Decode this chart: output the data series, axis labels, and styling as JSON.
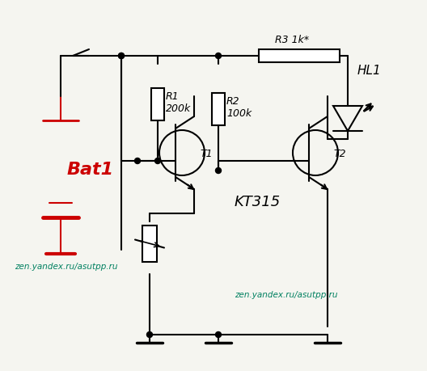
{
  "bg_color": "#f5f5f0",
  "line_color": "#000000",
  "battery_color": "#cc0000",
  "text_bat_color": "#cc0000",
  "text_kt_color": "#000000",
  "watermark_color": "#008060",
  "title": "",
  "watermark1": "zen.yandex.ru/asutpp.ru",
  "watermark2": "zen.yandex.ru/asutpp.ru",
  "label_r1": "R1\n200k",
  "label_r2": "R2\n100k",
  "label_r3": "R3 1k*",
  "label_hl1": "HL1",
  "label_t1": "T1",
  "label_t2": "T2",
  "label_kt": "KT315",
  "label_bat": "Bat1"
}
